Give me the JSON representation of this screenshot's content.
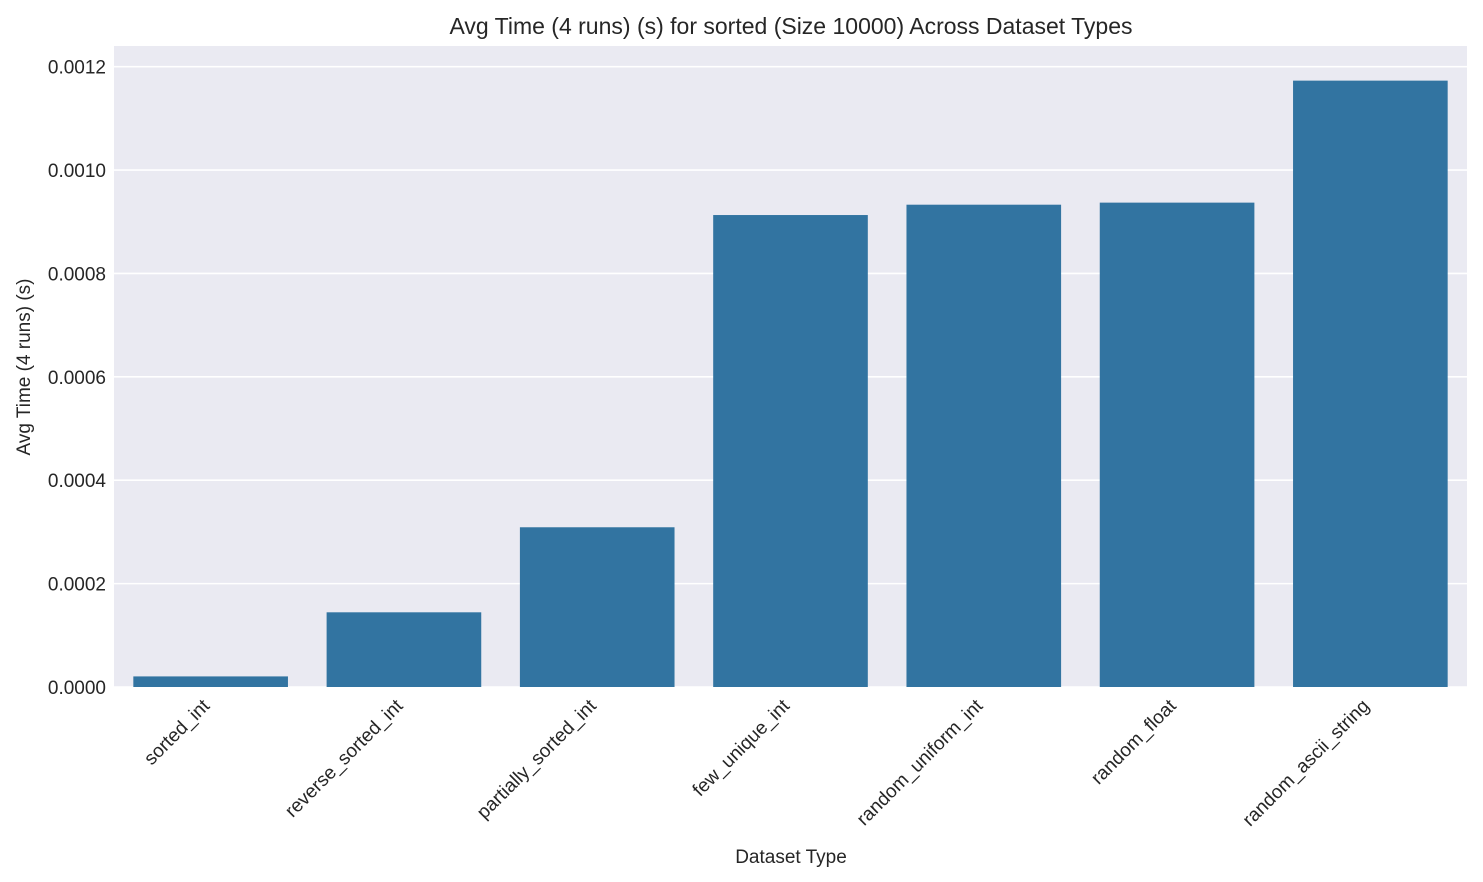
{
  "chart_data": {
    "type": "bar",
    "title": "Avg Time (4 runs) (s) for sorted (Size 10000) Across Dataset Types",
    "xlabel": "Dataset Type",
    "ylabel": "Avg Time (4 runs) (s)",
    "categories": [
      "sorted_int",
      "reverse_sorted_int",
      "partially_sorted_int",
      "few_unique_int",
      "random_uniform_int",
      "random_float",
      "random_ascii_string"
    ],
    "values": [
      2.05e-05,
      0.0001445,
      0.000309,
      0.000913,
      0.000933,
      0.000937,
      0.001173
    ],
    "ylim": [
      0,
      0.00124
    ],
    "yticks": [
      0,
      0.0002,
      0.0004,
      0.0006,
      0.0008,
      0.001,
      0.0012
    ],
    "ytick_labels": [
      "0.0000",
      "0.0002",
      "0.0004",
      "0.0006",
      "0.0008",
      "0.0010",
      "0.0012"
    ],
    "grid": true,
    "colors": {
      "bar": "#3274a1",
      "plot_background": "#eaeaf2",
      "grid": "#ffffff",
      "text": "#262626"
    }
  }
}
